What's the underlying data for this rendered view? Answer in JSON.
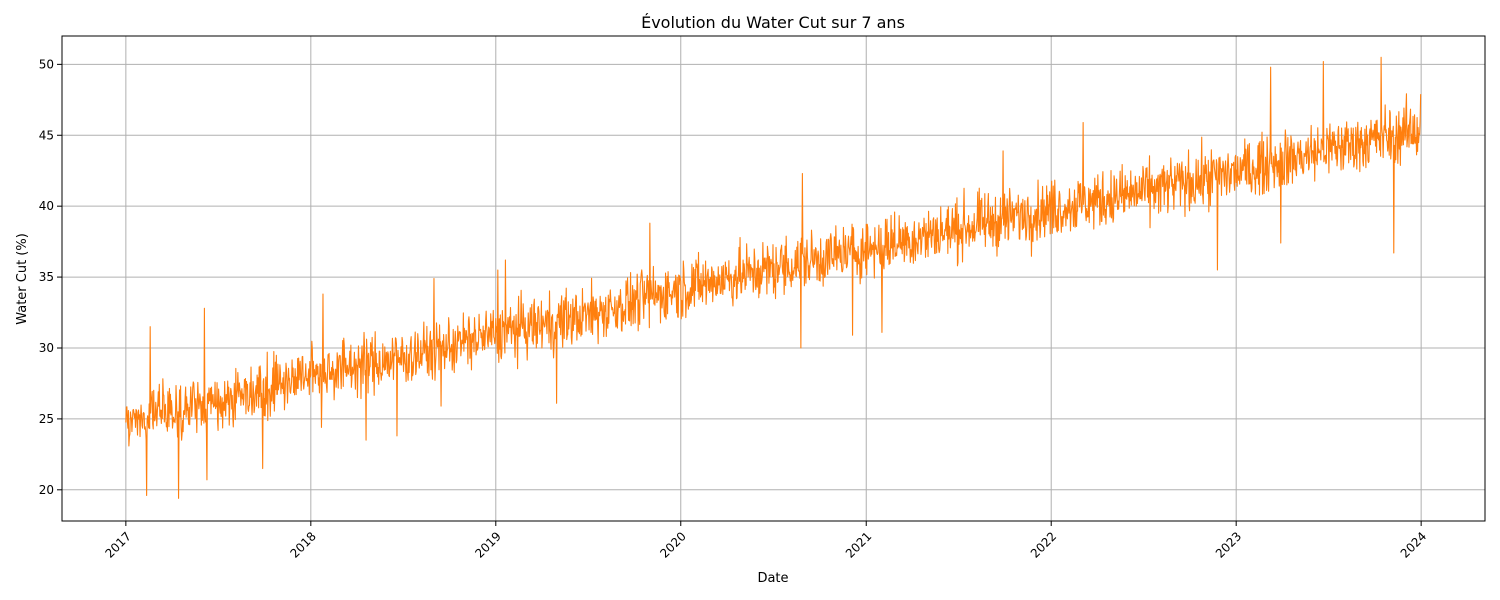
{
  "chart_data": {
    "type": "line",
    "title": "Évolution du Water Cut sur 7 ans",
    "xlabel": "Date",
    "ylabel": "Water Cut (%)",
    "x_axis_kind": "date",
    "xlim": [
      "2016-08-28",
      "2024-05-06"
    ],
    "ylim": [
      17.8,
      52.0
    ],
    "x_ticks": [
      "2017",
      "2018",
      "2019",
      "2020",
      "2021",
      "2022",
      "2023",
      "2024"
    ],
    "x_tick_dates": [
      "2017-01-01",
      "2018-01-01",
      "2019-01-01",
      "2020-01-01",
      "2021-01-01",
      "2022-01-01",
      "2023-01-01",
      "2024-01-01"
    ],
    "y_ticks": [
      20,
      25,
      30,
      35,
      40,
      45,
      50
    ],
    "grid": true,
    "legend": "none",
    "color": "#ff7f0e",
    "series": [
      {
        "date_range": [
          "2017-01-01",
          "2023-12-31"
        ],
        "frequency": "daily",
        "trend": [
          {
            "x": "2017-01-01",
            "y": 25.0
          },
          {
            "x": "2017-07-01",
            "y": 26.2
          },
          {
            "x": "2018-01-01",
            "y": 28.2
          },
          {
            "x": "2018-07-01",
            "y": 29.3
          },
          {
            "x": "2019-01-01",
            "y": 31.0
          },
          {
            "x": "2019-07-01",
            "y": 32.3
          },
          {
            "x": "2020-01-01",
            "y": 34.2
          },
          {
            "x": "2020-07-01",
            "y": 35.6
          },
          {
            "x": "2021-01-01",
            "y": 37.0
          },
          {
            "x": "2021-07-01",
            "y": 38.4
          },
          {
            "x": "2022-01-01",
            "y": 39.8
          },
          {
            "x": "2022-07-01",
            "y": 41.0
          },
          {
            "x": "2023-01-01",
            "y": 42.4
          },
          {
            "x": "2023-07-01",
            "y": 44.0
          },
          {
            "x": "2023-12-31",
            "y": 45.4
          }
        ],
        "spread": 2.4,
        "spikes": [
          {
            "x": "2017-02-11",
            "y": 19.6
          },
          {
            "x": "2017-02-18",
            "y": 31.5
          },
          {
            "x": "2017-04-15",
            "y": 19.4
          },
          {
            "x": "2017-06-05",
            "y": 32.8
          },
          {
            "x": "2017-06-10",
            "y": 20.7
          },
          {
            "x": "2017-09-28",
            "y": 21.5
          },
          {
            "x": "2018-01-22",
            "y": 24.4
          },
          {
            "x": "2018-01-25",
            "y": 33.8
          },
          {
            "x": "2018-04-20",
            "y": 23.5
          },
          {
            "x": "2018-06-20",
            "y": 23.8
          },
          {
            "x": "2018-09-01",
            "y": 34.9
          },
          {
            "x": "2018-09-15",
            "y": 25.9
          },
          {
            "x": "2019-01-05",
            "y": 35.5
          },
          {
            "x": "2019-01-20",
            "y": 36.2
          },
          {
            "x": "2019-05-01",
            "y": 26.1
          },
          {
            "x": "2019-11-01",
            "y": 38.8
          },
          {
            "x": "2020-08-25",
            "y": 30.0
          },
          {
            "x": "2020-08-28",
            "y": 42.3
          },
          {
            "x": "2020-12-05",
            "y": 30.9
          },
          {
            "x": "2021-02-01",
            "y": 31.1
          },
          {
            "x": "2021-09-28",
            "y": 43.9
          },
          {
            "x": "2022-03-05",
            "y": 45.9
          },
          {
            "x": "2022-11-25",
            "y": 35.5
          },
          {
            "x": "2023-03-10",
            "y": 49.8
          },
          {
            "x": "2023-03-30",
            "y": 37.4
          },
          {
            "x": "2023-06-22",
            "y": 50.2
          },
          {
            "x": "2023-10-14",
            "y": 50.5
          },
          {
            "x": "2023-11-08",
            "y": 36.7
          },
          {
            "x": "2023-12-31",
            "y": 47.9
          }
        ]
      }
    ]
  }
}
